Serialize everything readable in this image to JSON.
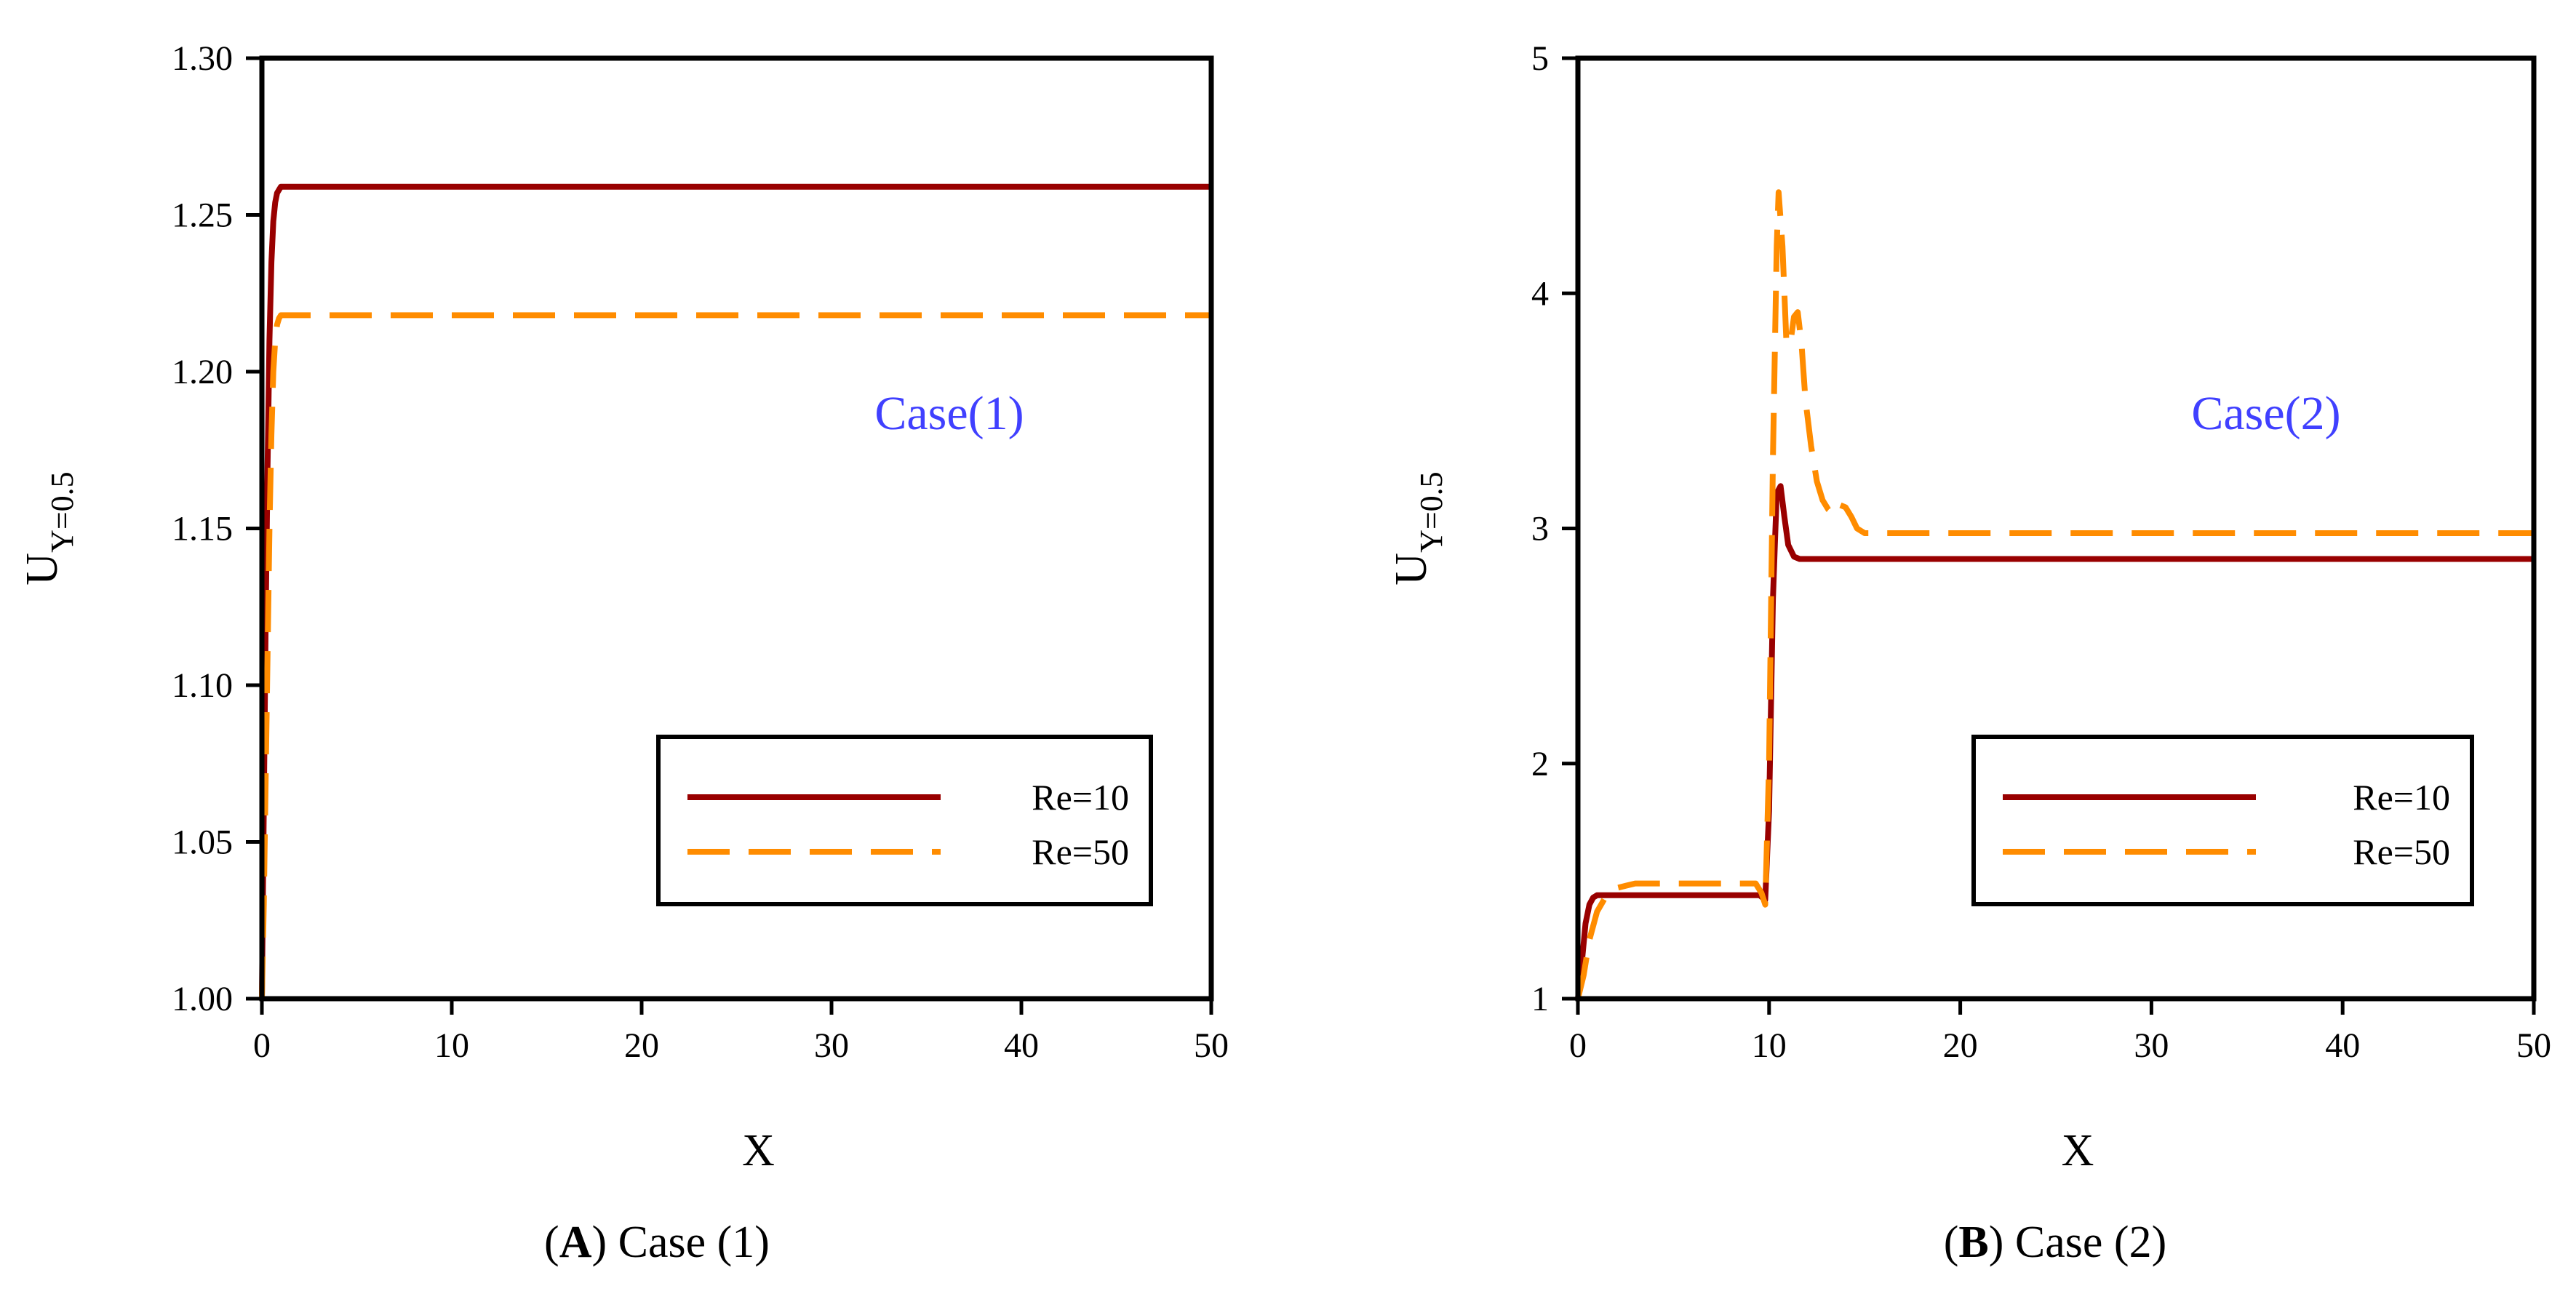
{
  "chart_data": [
    {
      "type": "line",
      "panel_letter": "A",
      "caption_rest": " Case (1)",
      "annotation": "Case(1)",
      "annotation_color": "#4040ff",
      "xlabel": "X",
      "ylabel_main": "U",
      "ylabel_sub": "Y=0.5",
      "xlim": [
        0,
        50
      ],
      "ylim": [
        1.0,
        1.3
      ],
      "xticks": [
        0,
        10,
        20,
        30,
        40,
        50
      ],
      "xtick_labels": [
        "0",
        "10",
        "20",
        "30",
        "40",
        "50"
      ],
      "yticks": [
        1.0,
        1.05,
        1.1,
        1.15,
        1.2,
        1.25,
        1.3
      ],
      "ytick_labels": [
        "1.00",
        "1.05",
        "1.10",
        "1.15",
        "1.20",
        "1.25",
        "1.30"
      ],
      "legend": [
        "Re=10",
        "Re=50"
      ],
      "series": [
        {
          "name": "Re=10",
          "color": "#990000",
          "dash": "solid",
          "x": [
            0,
            0.1,
            0.2,
            0.3,
            0.4,
            0.5,
            0.6,
            0.7,
            0.8,
            0.9,
            1.0,
            1.2,
            2,
            10,
            20,
            30,
            40,
            50
          ],
          "y": [
            1.0,
            1.06,
            1.12,
            1.17,
            1.21,
            1.235,
            1.248,
            1.254,
            1.257,
            1.258,
            1.259,
            1.259,
            1.259,
            1.259,
            1.259,
            1.259,
            1.259,
            1.259
          ]
        },
        {
          "name": "Re=50",
          "color": "#ff8c00",
          "dash": "dashed",
          "x": [
            0,
            0.1,
            0.2,
            0.3,
            0.4,
            0.5,
            0.6,
            0.7,
            0.8,
            0.9,
            1.0,
            1.2,
            2,
            10,
            20,
            30,
            40,
            50
          ],
          "y": [
            1.0,
            1.03,
            1.07,
            1.11,
            1.15,
            1.18,
            1.2,
            1.21,
            1.215,
            1.217,
            1.218,
            1.218,
            1.218,
            1.218,
            1.218,
            1.218,
            1.218,
            1.218
          ]
        }
      ]
    },
    {
      "type": "line",
      "panel_letter": "B",
      "caption_rest": " Case (2)",
      "annotation": "Case(2)",
      "annotation_color": "#4040ff",
      "xlabel": "X",
      "ylabel_main": "U",
      "ylabel_sub": "Y=0.5",
      "xlim": [
        0,
        50
      ],
      "ylim": [
        1,
        5
      ],
      "xticks": [
        0,
        10,
        20,
        30,
        40,
        50
      ],
      "xtick_labels": [
        "0",
        "10",
        "20",
        "30",
        "40",
        "50"
      ],
      "yticks": [
        1,
        2,
        3,
        4,
        5
      ],
      "ytick_labels": [
        "1",
        "2",
        "3",
        "4",
        "5"
      ],
      "legend": [
        "Re=10",
        "Re=50"
      ],
      "series": [
        {
          "name": "Re=10",
          "color": "#990000",
          "dash": "solid",
          "x": [
            0,
            0.2,
            0.4,
            0.6,
            0.8,
            1.0,
            1.5,
            9.5,
            9.8,
            10.0,
            10.2,
            10.4,
            10.6,
            10.8,
            11.0,
            11.3,
            11.6,
            12.0,
            13,
            20,
            30,
            40,
            50
          ],
          "y": [
            1.0,
            1.15,
            1.32,
            1.4,
            1.43,
            1.44,
            1.44,
            1.44,
            1.42,
            1.8,
            2.7,
            3.15,
            3.18,
            3.05,
            2.93,
            2.88,
            2.87,
            2.87,
            2.87,
            2.87,
            2.87,
            2.87,
            2.87
          ]
        },
        {
          "name": "Re=50",
          "color": "#ff8c00",
          "dash": "dashed",
          "x": [
            0,
            0.3,
            0.6,
            1.0,
            1.5,
            2.0,
            2.5,
            3.0,
            9.3,
            9.6,
            9.8,
            10.0,
            10.2,
            10.4,
            10.5,
            10.7,
            10.9,
            11.1,
            11.3,
            11.5,
            11.7,
            11.9,
            12.2,
            12.5,
            12.8,
            13.1,
            13.4,
            13.7,
            14.0,
            14.3,
            14.6,
            15.0,
            15.5,
            20,
            30,
            40,
            50
          ],
          "y": [
            1.0,
            1.1,
            1.25,
            1.37,
            1.44,
            1.47,
            1.48,
            1.49,
            1.49,
            1.45,
            1.4,
            2.0,
            3.3,
            4.2,
            4.43,
            4.2,
            3.8,
            3.78,
            3.9,
            3.92,
            3.78,
            3.55,
            3.35,
            3.2,
            3.12,
            3.08,
            3.06,
            3.1,
            3.09,
            3.05,
            3.0,
            2.98,
            2.98,
            2.98,
            2.98,
            2.98,
            2.98
          ]
        }
      ]
    }
  ]
}
